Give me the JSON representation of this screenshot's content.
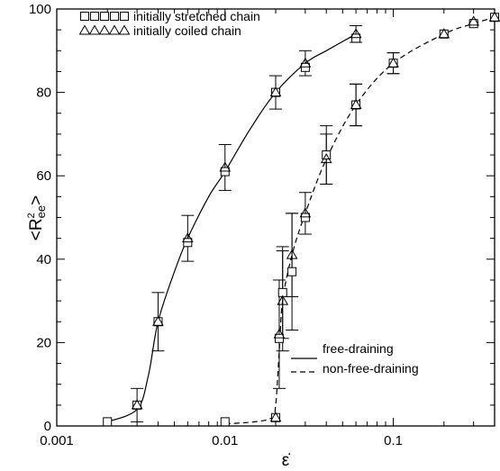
{
  "chart_data": {
    "type": "line",
    "title": "",
    "xlabel": "ε̇",
    "ylabel_main": "<R",
    "ylabel_sup": "2",
    "ylabel_sub": "ee",
    "ylabel_close": ">",
    "xscale": "log",
    "xlim": [
      0.001,
      0.4
    ],
    "ylim": [
      0,
      100
    ],
    "xticks": [
      {
        "value": 0.001,
        "label": "0.001"
      },
      {
        "value": 0.01,
        "label": "0.01"
      },
      {
        "value": 0.1,
        "label": "0.1"
      }
    ],
    "yticks": [
      {
        "value": 0,
        "label": "0"
      },
      {
        "value": 20,
        "label": "20"
      },
      {
        "value": 40,
        "label": "40"
      },
      {
        "value": 60,
        "label": "60"
      },
      {
        "value": 80,
        "label": "80"
      },
      {
        "value": 100,
        "label": "100"
      }
    ],
    "legend_markers": [
      {
        "marker": "square",
        "label": "initially stretched chain"
      },
      {
        "marker": "triangle",
        "label": "initially coiled chain"
      }
    ],
    "legend_lines": [
      {
        "style": "solid",
        "label": "free-draining"
      },
      {
        "style": "dashed",
        "label": "non-free-draining"
      }
    ],
    "series": [
      {
        "name": "initially stretched chain",
        "marker": "square",
        "group": "free-draining",
        "x": [
          0.002,
          0.003,
          0.004,
          0.006,
          0.01,
          0.02,
          0.03,
          0.06
        ],
        "y": [
          1,
          5,
          25,
          44,
          61,
          80,
          86,
          93
        ],
        "err": [
          0,
          0,
          0,
          0,
          0,
          0,
          0,
          0
        ]
      },
      {
        "name": "initially coiled chain",
        "marker": "triangle",
        "group": "free-draining",
        "x": [
          0.003,
          0.004,
          0.006,
          0.01,
          0.02,
          0.03,
          0.06
        ],
        "y": [
          5,
          25,
          45,
          62,
          80,
          87,
          94
        ],
        "err": [
          4,
          7,
          5.5,
          5.5,
          4,
          3,
          2
        ]
      },
      {
        "name": "initially stretched chain",
        "marker": "square",
        "group": "non-free-draining",
        "x": [
          0.01,
          0.02,
          0.021,
          0.022,
          0.025,
          0.03,
          0.04,
          0.06,
          0.1,
          0.2,
          0.3,
          0.4
        ],
        "y": [
          1,
          2,
          21,
          32,
          37,
          50,
          65,
          77,
          87,
          94,
          96.5,
          98
        ],
        "err": [
          0,
          0,
          0,
          11,
          14,
          0,
          7,
          5,
          2.5,
          0,
          0,
          0
        ]
      },
      {
        "name": "initially coiled chain",
        "marker": "triangle",
        "group": "non-free-draining",
        "x": [
          0.02,
          0.021,
          0.022,
          0.025,
          0.03,
          0.04,
          0.06,
          0.1,
          0.2,
          0.3,
          0.4
        ],
        "y": [
          2,
          22,
          30,
          41,
          51,
          64,
          77,
          87,
          94,
          97,
          98
        ],
        "err": [
          0,
          13,
          12,
          10,
          5,
          6,
          5,
          2.5,
          0,
          0,
          0
        ]
      }
    ],
    "curves": [
      {
        "style": "solid",
        "x": [
          0.002,
          0.003,
          0.0035,
          0.004,
          0.005,
          0.006,
          0.008,
          0.01,
          0.014,
          0.02,
          0.03,
          0.04,
          0.06
        ],
        "y": [
          1,
          4,
          12,
          25,
          37,
          45,
          55,
          61,
          71,
          80,
          87,
          90,
          94
        ]
      },
      {
        "style": "dashed",
        "x": [
          0.01,
          0.015,
          0.019,
          0.02,
          0.021,
          0.022,
          0.025,
          0.03,
          0.04,
          0.06,
          0.1,
          0.2,
          0.3,
          0.4
        ],
        "y": [
          0.5,
          1,
          2,
          5,
          18,
          30,
          41,
          51,
          64,
          77,
          87,
          94,
          96.5,
          98
        ]
      }
    ]
  }
}
